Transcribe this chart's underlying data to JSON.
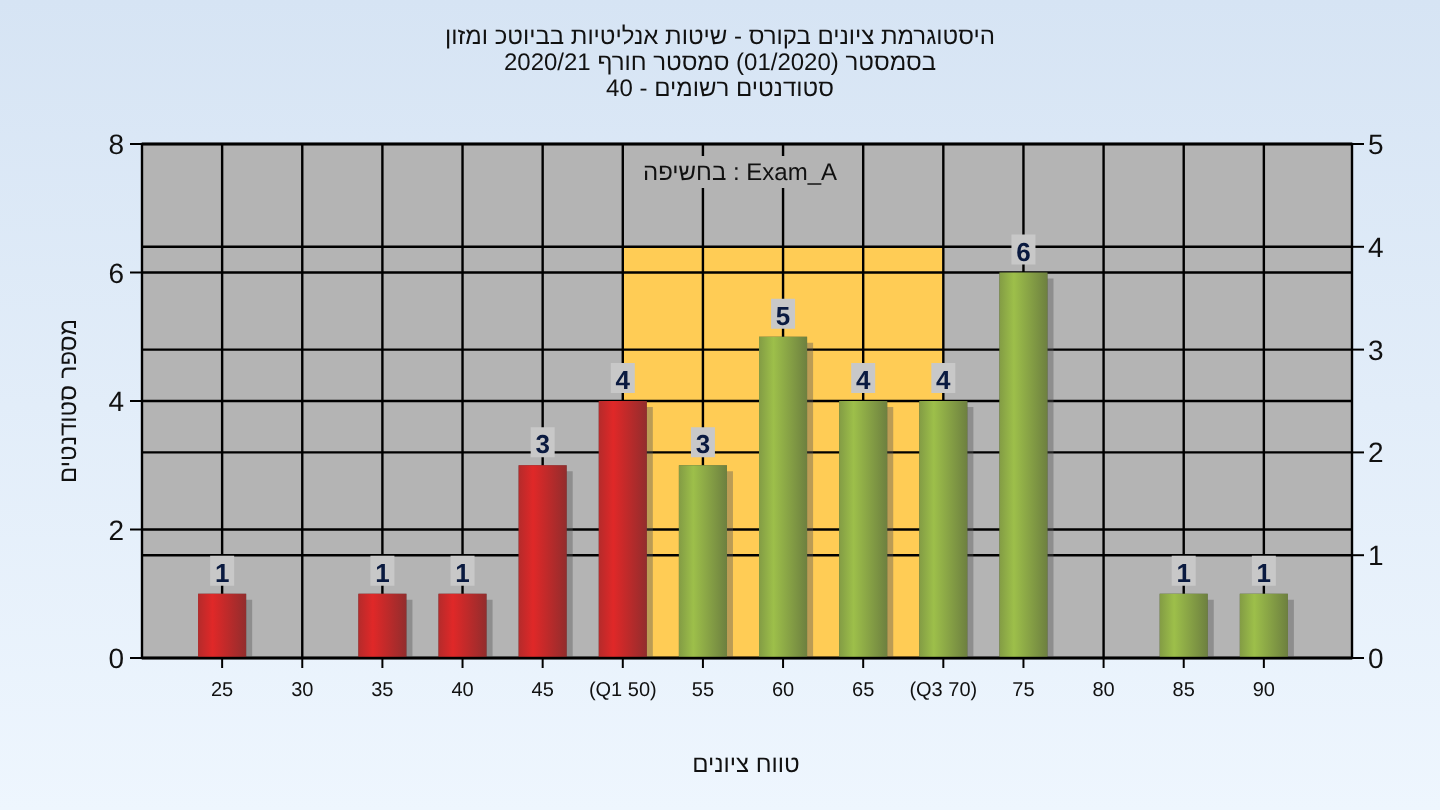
{
  "chart_data": {
    "type": "bar",
    "title": "היסטוגרמת ציונים בקורס - שיטות אנליטיות בביוטכ ומזון",
    "subtitle": "בסמסטר  (01/2020)  סמסטר חורף 2020/21",
    "xlabel": "טווח ציונים",
    "ylabel": "מספר סטודנטים",
    "annotations": [
      "סטודנטים רשומים - 40",
      "בחשיפה : Exam_A"
    ],
    "series": [
      {
        "type": "area",
        "axis": "y2",
        "x": [
          50,
          70
        ],
        "values": [
          4,
          4
        ],
        "color": "#ffcc55"
      },
      {
        "x": [
          25,
          35,
          40,
          45,
          50,
          55,
          60,
          65,
          70,
          75,
          85,
          90
        ],
        "values": [
          1,
          1,
          1,
          3,
          4,
          3,
          5,
          4,
          4,
          6,
          1,
          1
        ],
        "value_labels": [
          "1",
          "1",
          "1",
          "3",
          "4",
          "3",
          "5",
          "4",
          "4",
          "6",
          "1",
          "1"
        ],
        "colors": [
          "#e02828",
          "#e02828",
          "#e02828",
          "#e02828",
          "#e02828",
          "#9dbf4a",
          "#9dbf4a",
          "#9dbf4a",
          "#9dbf4a",
          "#9dbf4a",
          "#9dbf4a",
          "#9dbf4a"
        ]
      }
    ],
    "xlim": [
      20,
      95.5
    ],
    "xticks": [
      25,
      30,
      35,
      40,
      45,
      {
        "value": 50,
        "label": "(Q1 50)"
      },
      55,
      60,
      65,
      {
        "value": 70,
        "label": "(Q3 70)"
      },
      75,
      80,
      85,
      90
    ],
    "ylim": [
      0,
      8
    ],
    "yticks": [
      0,
      2,
      4,
      6,
      8
    ],
    "y2lim": [
      0,
      5
    ],
    "y2ticks": [
      0,
      1,
      2,
      3,
      4,
      5
    ],
    "grid": true
  }
}
